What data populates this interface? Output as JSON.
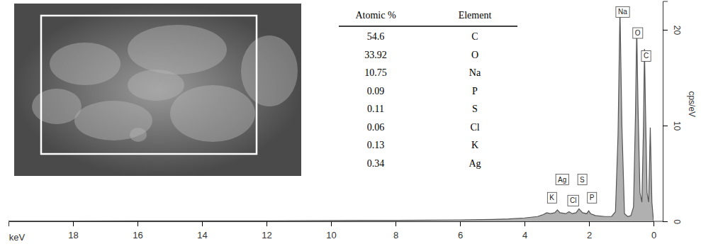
{
  "chart_data": {
    "type": "area",
    "x_label": "keV",
    "y_label": "cps/eV",
    "x": [
      0,
      0.05,
      0.1,
      0.15,
      0.2,
      0.25,
      0.28,
      0.31,
      0.36,
      0.42,
      0.48,
      0.52,
      0.56,
      0.62,
      0.7,
      0.8,
      0.9,
      0.98,
      1.04,
      1.1,
      1.18,
      1.3,
      1.5,
      1.8,
      1.95,
      2.01,
      2.07,
      2.2,
      2.31,
      2.4,
      2.52,
      2.62,
      2.72,
      2.9,
      2.98,
      3.06,
      3.2,
      3.31,
      3.42,
      3.6,
      4,
      4.5,
      5,
      6,
      7,
      8,
      9,
      10,
      12,
      14,
      16,
      18,
      20
    ],
    "values": [
      0,
      2,
      9.8,
      2,
      3,
      12,
      18,
      10,
      2,
      3,
      12,
      20.2,
      11,
      1.5,
      0.6,
      0.5,
      0.8,
      10,
      22.2,
      9,
      1,
      0.5,
      0.5,
      0.6,
      0.8,
      1.1,
      0.8,
      0.9,
      1.3,
      0.9,
      0.8,
      1.0,
      0.8,
      0.9,
      1.2,
      0.9,
      0.8,
      0.9,
      0.7,
      0.5,
      0.35,
      0.25,
      0.2,
      0.15,
      0.12,
      0.1,
      0.1,
      0.08,
      0.05,
      0.05,
      0.04,
      0.03,
      0.03
    ],
    "color": "#b0b0b0",
    "xlim": [
      0,
      20
    ],
    "xticks": [
      0,
      2,
      4,
      6,
      8,
      10,
      12,
      14,
      16,
      18
    ],
    "ylim": [
      0,
      23
    ],
    "yticks": [
      0,
      10,
      20
    ],
    "annotations": [
      {
        "text": "Na",
        "x": 0.96,
        "y": 21.8
      },
      {
        "text": "O",
        "x": 0.49,
        "y": 19.6
      },
      {
        "text": "C",
        "x": 0.23,
        "y": 17.2
      },
      {
        "text": "Ag",
        "x": 2.83,
        "y": 4.3
      },
      {
        "text": "S",
        "x": 2.21,
        "y": 4.3
      },
      {
        "text": "P",
        "x": 1.91,
        "y": 2.4
      },
      {
        "text": "Cl",
        "x": 2.49,
        "y": 2.1
      },
      {
        "text": "K",
        "x": 3.15,
        "y": 2.4
      }
    ]
  },
  "table": {
    "columns": [
      "Atomic %",
      "Element"
    ],
    "rows": [
      [
        54.6,
        "C"
      ],
      [
        33.92,
        "O"
      ],
      [
        10.75,
        "Na"
      ],
      [
        0.09,
        "P"
      ],
      [
        0.11,
        "S"
      ],
      [
        0.06,
        "Cl"
      ],
      [
        0.13,
        "K"
      ],
      [
        0.34,
        "Ag"
      ]
    ]
  }
}
